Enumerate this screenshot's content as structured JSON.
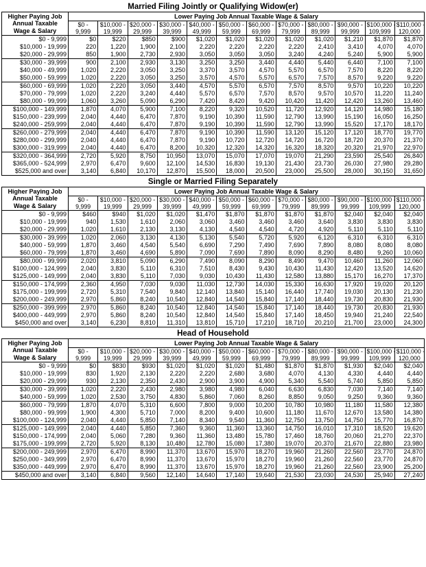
{
  "row_header": [
    "Higher Paying Job",
    "Annual Taxable",
    "Wage & Salary"
  ],
  "column_caption": "Lower Paying Job Annual Taxable Wage & Salary",
  "columns": [
    [
      "$0 -",
      "9,999"
    ],
    [
      "$10,000 -",
      "19,999"
    ],
    [
      "$20,000 -",
      "29,999"
    ],
    [
      "$30,000 -",
      "39,999"
    ],
    [
      "$40,000 -",
      "49,999"
    ],
    [
      "$50,000 -",
      "59,999"
    ],
    [
      "$60,000 -",
      "69,999"
    ],
    [
      "$70,000 -",
      "79,999"
    ],
    [
      "$80,000 -",
      "89,999"
    ],
    [
      "$90,000 -",
      "99,999"
    ],
    [
      "$100,000 -",
      "109,999"
    ],
    [
      "$110,000 -",
      "120,000"
    ]
  ],
  "sections": [
    {
      "title": "Married Filing Jointly or Qualifying Widow(er)",
      "groups": [
        3,
        3,
        3,
        3,
        3,
        3
      ],
      "rows": [
        [
          "$0 - 9,999",
          [
            "$0",
            "$220",
            "$850",
            "$900",
            "$1,020",
            "$1,020",
            "$1,020",
            "$1,020",
            "$1,020",
            "$1,210",
            "$1,870",
            "$1,870"
          ]
        ],
        [
          "$10,000 - 19,999",
          [
            "220",
            "1,220",
            "1,900",
            "2,100",
            "2,220",
            "2,220",
            "2,220",
            "2,220",
            "2,410",
            "3,410",
            "4,070",
            "4,070"
          ]
        ],
        [
          "$20,000 - 29,999",
          [
            "850",
            "1,900",
            "2,730",
            "2,930",
            "3,050",
            "3,050",
            "3,050",
            "3,240",
            "4,240",
            "5,240",
            "5,900",
            "5,900"
          ]
        ],
        [
          "$30,000 - 39,999",
          [
            "900",
            "2,100",
            "2,930",
            "3,130",
            "3,250",
            "3,250",
            "3,440",
            "4,440",
            "5,440",
            "6,440",
            "7,100",
            "7,100"
          ]
        ],
        [
          "$40,000 - 49,999",
          [
            "1,020",
            "2,220",
            "3,050",
            "3,250",
            "3,370",
            "3,570",
            "4,570",
            "5,570",
            "6,570",
            "7,570",
            "8,220",
            "8,220"
          ]
        ],
        [
          "$50,000 - 59,999",
          [
            "1,020",
            "2,220",
            "3,050",
            "3,250",
            "3,570",
            "4,570",
            "5,570",
            "6,570",
            "7,570",
            "8,570",
            "9,220",
            "9,220"
          ]
        ],
        [
          "$60,000 - 69,999",
          [
            "1,020",
            "2,220",
            "3,050",
            "3,440",
            "4,570",
            "5,570",
            "6,570",
            "7,570",
            "8,570",
            "9,570",
            "10,220",
            "10,220"
          ]
        ],
        [
          "$70,000 - 79,999",
          [
            "1,020",
            "2,220",
            "3,240",
            "4,440",
            "5,570",
            "6,570",
            "7,570",
            "8,570",
            "9,570",
            "10,570",
            "11,220",
            "11,240"
          ]
        ],
        [
          "$80,000 - 99,999",
          [
            "1,060",
            "3,260",
            "5,090",
            "6,290",
            "7,420",
            "8,420",
            "9,420",
            "10,420",
            "11,420",
            "12,420",
            "13,260",
            "13,460"
          ]
        ],
        [
          "$100,000 - 149,999",
          [
            "1,870",
            "4,070",
            "5,900",
            "7,100",
            "8,220",
            "9,320",
            "10,520",
            "11,720",
            "12,920",
            "14,120",
            "14,980",
            "15,180"
          ]
        ],
        [
          "$150,000 - 239,999",
          [
            "2,040",
            "4,440",
            "6,470",
            "7,870",
            "9,190",
            "10,390",
            "11,590",
            "12,790",
            "13,990",
            "15,190",
            "16,050",
            "16,250"
          ]
        ],
        [
          "$240,000 - 259,999",
          [
            "2,040",
            "4,440",
            "6,470",
            "7,870",
            "9,190",
            "10,390",
            "11,590",
            "12,790",
            "13,990",
            "15,520",
            "17,170",
            "18,170"
          ]
        ],
        [
          "$260,000 - 279,999",
          [
            "2,040",
            "4,440",
            "6,470",
            "7,870",
            "9,190",
            "10,390",
            "11,590",
            "13,120",
            "15,120",
            "17,120",
            "18,770",
            "19,770"
          ]
        ],
        [
          "$280,000 - 299,999",
          [
            "2,040",
            "4,440",
            "6,470",
            "7,870",
            "9,190",
            "10,720",
            "12,720",
            "14,720",
            "16,720",
            "18,720",
            "20,370",
            "21,370"
          ]
        ],
        [
          "$300,000 - 319,999",
          [
            "2,040",
            "4,440",
            "6,470",
            "8,200",
            "10,320",
            "12,320",
            "14,320",
            "16,320",
            "18,320",
            "20,320",
            "21,970",
            "22,970"
          ]
        ],
        [
          "$320,000 - 364,999",
          [
            "2,720",
            "5,920",
            "8,750",
            "10,950",
            "13,070",
            "15,070",
            "17,070",
            "19,070",
            "21,290",
            "23,590",
            "25,540",
            "26,840"
          ]
        ],
        [
          "$365,000 - 524,999",
          [
            "2,970",
            "6,470",
            "9,600",
            "12,100",
            "14,530",
            "16,830",
            "19,130",
            "21,430",
            "23,730",
            "26,030",
            "27,980",
            "29,280"
          ]
        ],
        [
          "$525,000 and over",
          [
            "3,140",
            "6,840",
            "10,170",
            "12,870",
            "15,500",
            "18,000",
            "20,500",
            "23,000",
            "25,500",
            "28,000",
            "30,150",
            "31,650"
          ]
        ]
      ]
    },
    {
      "title": "Single or Married Filing Separately",
      "groups": [
        3,
        3,
        3,
        3,
        3,
        3
      ],
      "rows": [
        [
          "$0 - 9,999",
          [
            "$460",
            "$940",
            "$1,020",
            "$1,020",
            "$1,470",
            "$1,870",
            "$1,870",
            "$1,870",
            "$1,870",
            "$2,040",
            "$2,040",
            "$2,040"
          ]
        ],
        [
          "$10,000 - 19,999",
          [
            "940",
            "1,530",
            "1,610",
            "2,060",
            "3,060",
            "3,460",
            "3,460",
            "3,460",
            "3,640",
            "3,830",
            "3,830",
            "3,830"
          ]
        ],
        [
          "$20,000 - 29,999",
          [
            "1,020",
            "1,610",
            "2,130",
            "3,130",
            "4,130",
            "4,540",
            "4,540",
            "4,720",
            "4,920",
            "5,110",
            "5,110",
            "5,110"
          ]
        ],
        [
          "$30,000 - 39,999",
          [
            "1,020",
            "2,060",
            "3,130",
            "4,130",
            "5,130",
            "5,540",
            "5,720",
            "5,920",
            "6,120",
            "6,310",
            "6,310",
            "6,310"
          ]
        ],
        [
          "$40,000 - 59,999",
          [
            "1,870",
            "3,460",
            "4,540",
            "5,540",
            "6,690",
            "7,290",
            "7,490",
            "7,690",
            "7,890",
            "8,080",
            "8,080",
            "8,080"
          ]
        ],
        [
          "$60,000 - 79,999",
          [
            "1,870",
            "3,460",
            "4,690",
            "5,890",
            "7,090",
            "7,690",
            "7,890",
            "8,090",
            "8,290",
            "8,480",
            "9,260",
            "10,060"
          ]
        ],
        [
          "$80,000 - 99,999",
          [
            "2,020",
            "3,810",
            "5,090",
            "6,290",
            "7,490",
            "8,090",
            "8,290",
            "8,490",
            "9,470",
            "10,460",
            "11,260",
            "12,060"
          ]
        ],
        [
          "$100,000 - 124,999",
          [
            "2,040",
            "3,830",
            "5,110",
            "6,310",
            "7,510",
            "8,430",
            "9,430",
            "10,430",
            "11,430",
            "12,420",
            "13,520",
            "14,620"
          ]
        ],
        [
          "$125,000 - 149,999",
          [
            "2,040",
            "3,830",
            "5,110",
            "7,030",
            "9,030",
            "10,430",
            "11,430",
            "12,580",
            "13,880",
            "15,170",
            "16,270",
            "17,370"
          ]
        ],
        [
          "$150,000 - 174,999",
          [
            "2,360",
            "4,950",
            "7,030",
            "9,030",
            "11,030",
            "12,730",
            "14,030",
            "15,330",
            "16,630",
            "17,920",
            "19,020",
            "20,120"
          ]
        ],
        [
          "$175,000 - 199,999",
          [
            "2,720",
            "5,310",
            "7,540",
            "9,840",
            "12,140",
            "13,840",
            "15,140",
            "16,440",
            "17,740",
            "19,030",
            "20,130",
            "21,230"
          ]
        ],
        [
          "$200,000 - 249,999",
          [
            "2,970",
            "5,860",
            "8,240",
            "10,540",
            "12,840",
            "14,540",
            "15,840",
            "17,140",
            "18,440",
            "19,730",
            "20,830",
            "21,930"
          ]
        ],
        [
          "$250,000 - 399,999",
          [
            "2,970",
            "5,860",
            "8,240",
            "10,540",
            "12,840",
            "14,540",
            "15,840",
            "17,140",
            "18,440",
            "19,730",
            "20,830",
            "21,930"
          ]
        ],
        [
          "$400,000 - 449,999",
          [
            "2,970",
            "5,860",
            "8,240",
            "10,540",
            "12,840",
            "14,540",
            "15,840",
            "17,140",
            "18,450",
            "19,940",
            "21,240",
            "22,540"
          ]
        ],
        [
          "$450,000 and over",
          [
            "3,140",
            "6,230",
            "8,810",
            "11,310",
            "13,810",
            "15,710",
            "17,210",
            "18,710",
            "20,210",
            "21,700",
            "23,000",
            "24,300"
          ]
        ]
      ]
    },
    {
      "title": "Head of Household",
      "groups": [
        3,
        2,
        3,
        3,
        3,
        1
      ],
      "rows": [
        [
          "$0 - 9,999",
          [
            "$0",
            "$830",
            "$930",
            "$1,020",
            "$1,020",
            "$1,020",
            "$1,480",
            "$1,870",
            "$1,870",
            "$1,930",
            "$2,040",
            "$2,040"
          ]
        ],
        [
          "$10,000 - 19,999",
          [
            "830",
            "1,920",
            "2,130",
            "2,220",
            "2,220",
            "2,680",
            "3,680",
            "4,070",
            "4,130",
            "4,330",
            "4,440",
            "4,440"
          ]
        ],
        [
          "$20,000 - 29,999",
          [
            "930",
            "2,130",
            "2,350",
            "2,430",
            "2,900",
            "3,900",
            "4,900",
            "5,340",
            "5,540",
            "5,740",
            "5,850",
            "5,850"
          ]
        ],
        [
          "$30,000 - 39,999",
          [
            "1,020",
            "2,220",
            "2,430",
            "2,980",
            "3,980",
            "4,980",
            "6,040",
            "6,630",
            "6,830",
            "7,030",
            "7,140",
            "7,140"
          ]
        ],
        [
          "$40,000 - 59,999",
          [
            "1,020",
            "2,530",
            "3,750",
            "4,830",
            "5,860",
            "7,060",
            "8,260",
            "8,850",
            "9,050",
            "9,250",
            "9,360",
            "9,360"
          ]
        ],
        [
          "$60,000 - 79,999",
          [
            "1,870",
            "4,070",
            "5,310",
            "6,600",
            "7,800",
            "9,000",
            "10,200",
            "10,780",
            "10,980",
            "11,180",
            "11,580",
            "12,380"
          ]
        ],
        [
          "$80,000 - 99,999",
          [
            "1,900",
            "4,300",
            "5,710",
            "7,000",
            "8,200",
            "9,400",
            "10,600",
            "11,180",
            "11,670",
            "12,670",
            "13,580",
            "14,380"
          ]
        ],
        [
          "$100,000 - 124,999",
          [
            "2,040",
            "4,440",
            "5,850",
            "7,140",
            "8,340",
            "9,540",
            "11,360",
            "12,750",
            "13,750",
            "14,750",
            "15,770",
            "16,870"
          ]
        ],
        [
          "$125,000 - 149,999",
          [
            "2,040",
            "4,440",
            "5,850",
            "7,360",
            "9,360",
            "11,360",
            "13,360",
            "14,750",
            "16,010",
            "17,310",
            "18,520",
            "19,620"
          ]
        ],
        [
          "$150,000 - 174,999",
          [
            "2,040",
            "5,060",
            "7,280",
            "9,360",
            "11,360",
            "13,480",
            "15,780",
            "17,460",
            "18,760",
            "20,060",
            "21,270",
            "22,370"
          ]
        ],
        [
          "$175,000 - 199,999",
          [
            "2,720",
            "5,920",
            "8,130",
            "10,480",
            "12,780",
            "15,080",
            "17,380",
            "19,070",
            "20,370",
            "21,670",
            "22,880",
            "23,980"
          ]
        ],
        [
          "$200,000 - 249,999",
          [
            "2,970",
            "6,470",
            "8,990",
            "11,370",
            "13,670",
            "15,970",
            "18,270",
            "19,960",
            "21,260",
            "22,560",
            "23,770",
            "24,870"
          ]
        ],
        [
          "$250,000 - 349,999",
          [
            "2,970",
            "6,470",
            "8,990",
            "11,370",
            "13,670",
            "15,970",
            "18,270",
            "19,960",
            "21,260",
            "22,560",
            "23,770",
            "24,870"
          ]
        ],
        [
          "$350,000 - 449,999",
          [
            "2,970",
            "6,470",
            "8,990",
            "11,370",
            "13,670",
            "15,970",
            "18,270",
            "19,960",
            "21,260",
            "22,560",
            "23,900",
            "25,200"
          ]
        ],
        [
          "$450,000 and over",
          [
            "3,140",
            "6,840",
            "9,560",
            "12,140",
            "14,640",
            "17,140",
            "19,640",
            "21,530",
            "23,030",
            "24,530",
            "25,940",
            "27,240"
          ]
        ]
      ]
    }
  ]
}
